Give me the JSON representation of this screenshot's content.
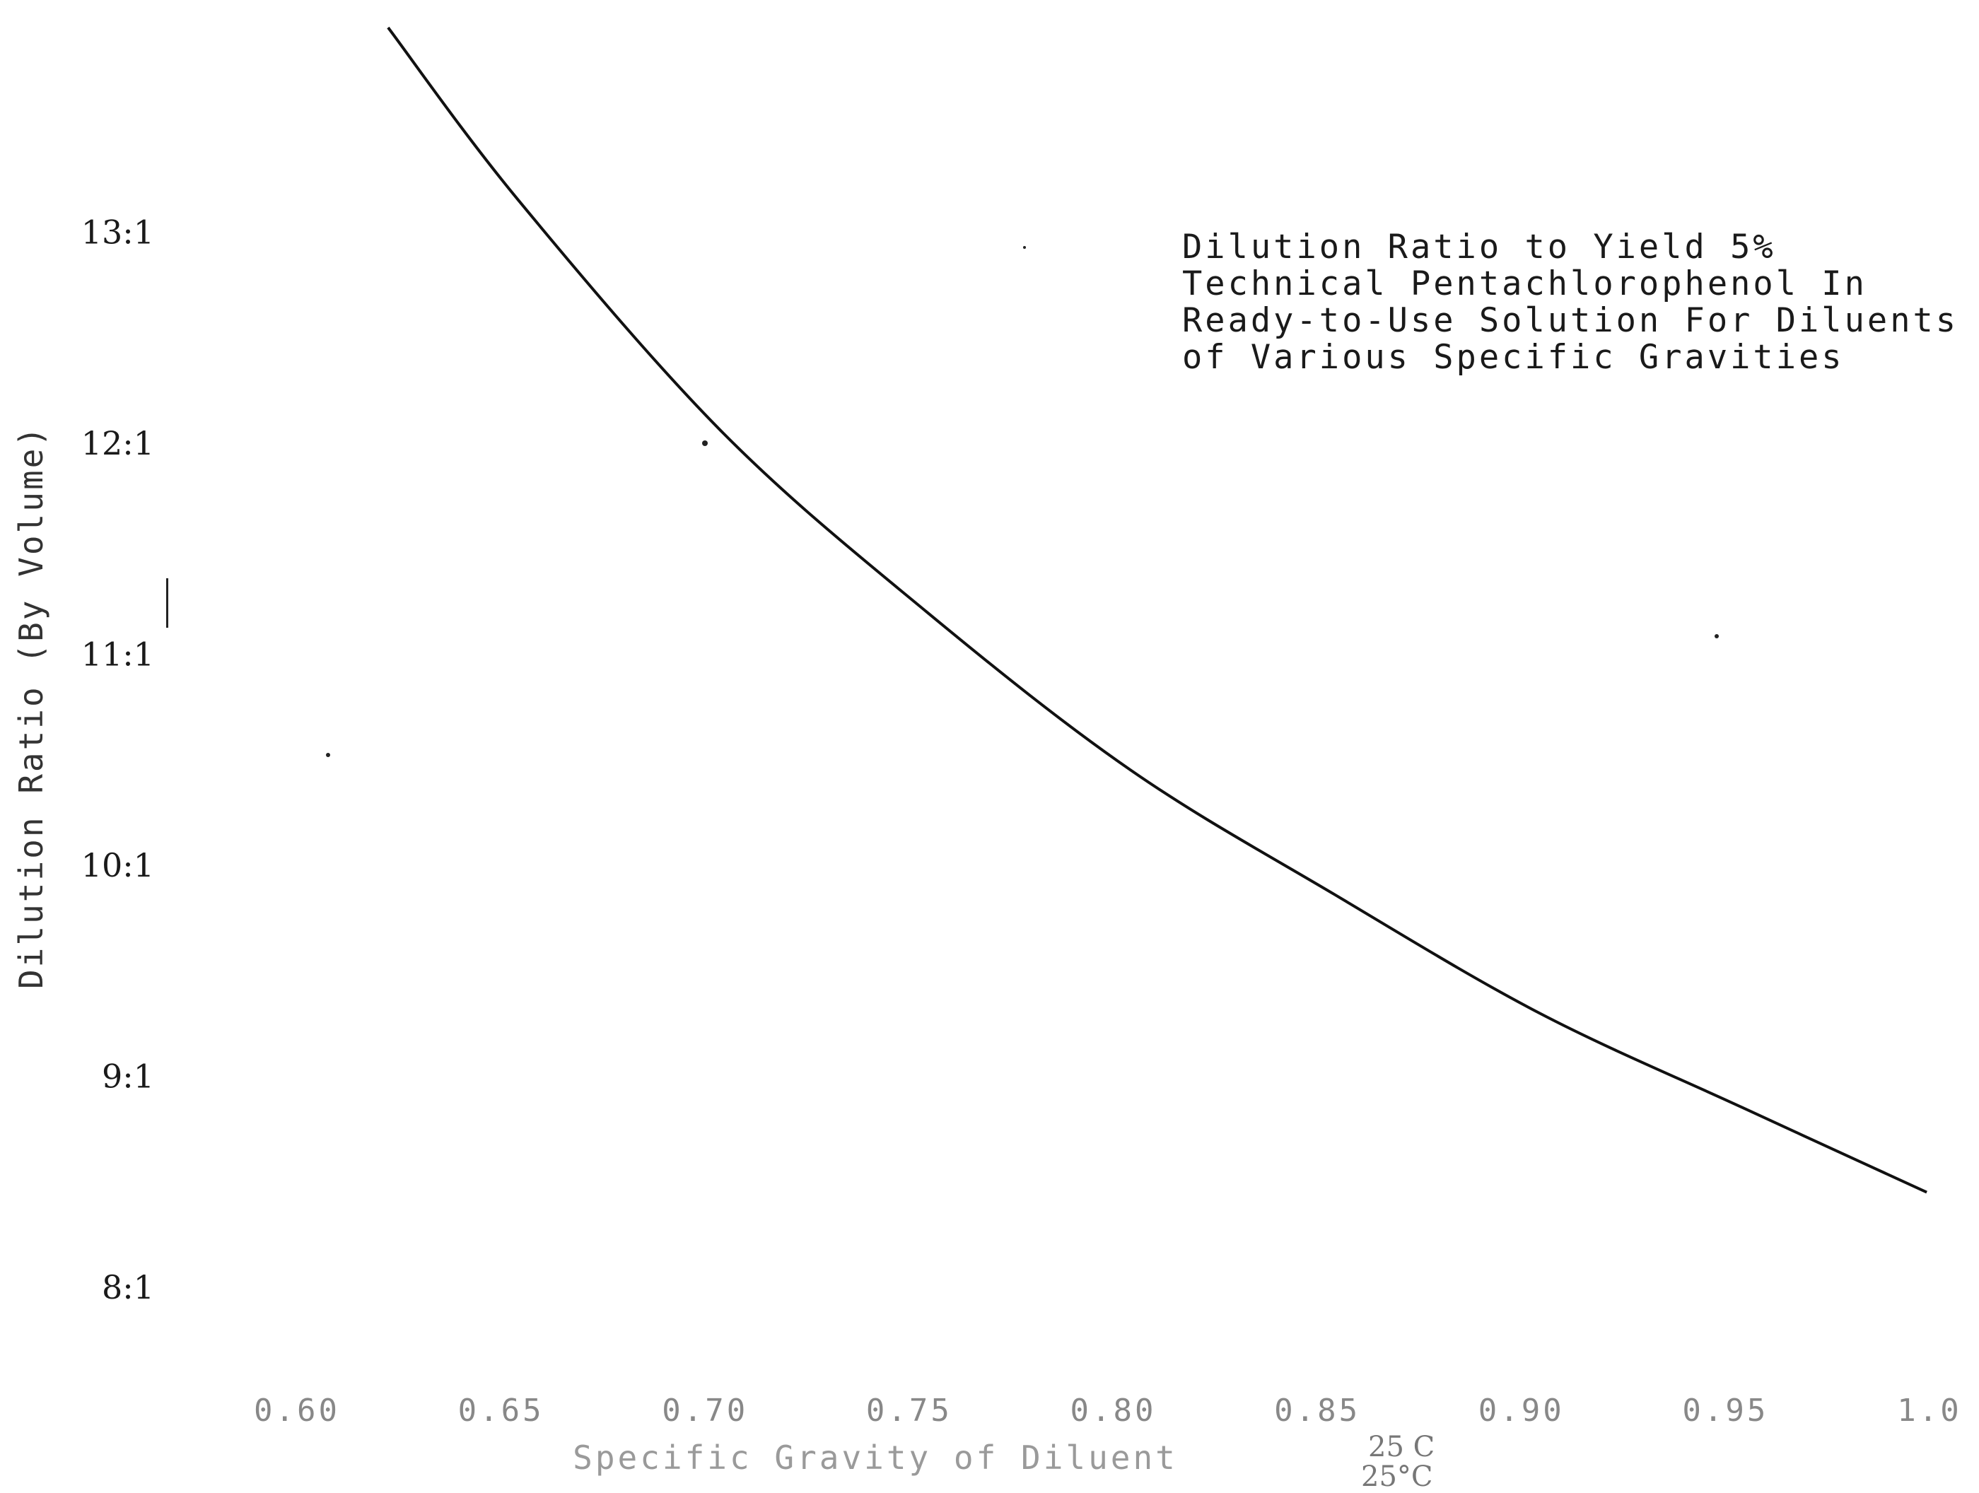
{
  "chart_data": {
    "type": "line",
    "title_lines": [
      "Dilution Ratio to Yield 5%",
      "Technical Pentachlorophenol In",
      "Ready-to-Use Solution For Diluents",
      "of Various Specific Gravities"
    ],
    "xlabel": "Specific Gravity of Diluent",
    "ylabel": "Dilution Ratio (By Volume)",
    "x_unit_labels": [
      "25 C",
      "25°C"
    ],
    "x_ticks": [
      {
        "value": 0.6,
        "label": "0.60"
      },
      {
        "value": 0.65,
        "label": "0.65"
      },
      {
        "value": 0.7,
        "label": "0.70"
      },
      {
        "value": 0.75,
        "label": "0.75"
      },
      {
        "value": 0.8,
        "label": "0.80"
      },
      {
        "value": 0.85,
        "label": "0.85"
      },
      {
        "value": 0.9,
        "label": "0.90"
      },
      {
        "value": 0.95,
        "label": "0.95"
      },
      {
        "value": 1.0,
        "label": "1.0"
      }
    ],
    "y_ticks": [
      {
        "value": 8,
        "label": "8:1"
      },
      {
        "value": 9,
        "label": "9:1"
      },
      {
        "value": 10,
        "label": "10:1"
      },
      {
        "value": 11,
        "label": "11:1"
      },
      {
        "value": 12,
        "label": "12:1"
      },
      {
        "value": 13,
        "label": "13:1"
      }
    ],
    "xlim": [
      0.6,
      1.0
    ],
    "ylim": [
      7.4,
      14.0
    ],
    "grid": false,
    "series": [
      {
        "x": [
          0.618,
          0.65,
          0.7,
          0.75,
          0.8,
          0.85,
          0.9,
          0.95,
          0.995
        ],
        "y": [
          13.97,
          13.15,
          12.05,
          11.2,
          10.45,
          9.86,
          9.3,
          8.85,
          8.45
        ]
      }
    ]
  }
}
